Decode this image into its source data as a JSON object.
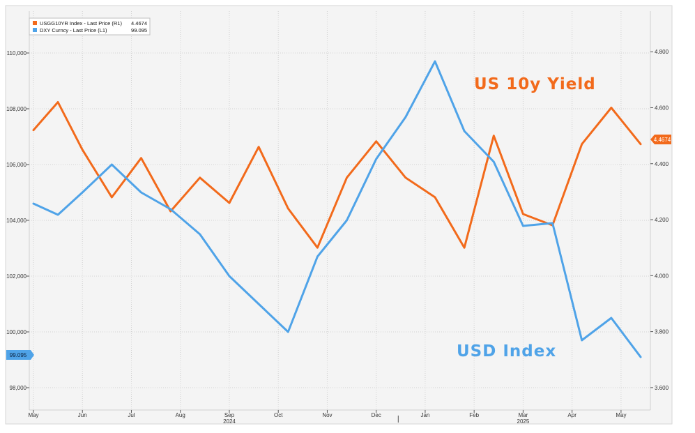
{
  "chart_data": {
    "type": "line",
    "months": [
      "May",
      "Jun",
      "Jul",
      "Aug",
      "Sep",
      "Oct",
      "Nov",
      "Dec",
      "Jan",
      "Feb",
      "Mar",
      "Apr",
      "May"
    ],
    "years": [
      "2024",
      "2025"
    ],
    "left_axis": {
      "ticks": [
        "98,000",
        "100,000",
        "102,000",
        "104,000",
        "106,000",
        "108,000",
        "110,000"
      ],
      "ylim": [
        97.2,
        111.5
      ]
    },
    "right_axis": {
      "ticks": [
        "3.600",
        "3.800",
        "4.000",
        "4.200",
        "4.400",
        "4.600",
        "4.800"
      ],
      "ylim": [
        3.52,
        4.945
      ]
    },
    "grid": true,
    "legend": {
      "position": "top-left",
      "items": [
        {
          "label": "USGG10YR Index - Last Price (R1)",
          "value": "4.4674",
          "color": "#f26a1b"
        },
        {
          "label": "DXY Curncy - Last Price (L1)",
          "value": "99.095",
          "color": "#4fa3e8"
        }
      ]
    },
    "annotations": {
      "yield_label": "US 10y Yield",
      "usd_label": "USD Index"
    },
    "last_value_tags": {
      "yield": "4.4674",
      "usd": "99.095"
    },
    "series": [
      {
        "name": "USGG10YR Index - Last Price (R1)",
        "axis": "right",
        "color": "#f26a1b",
        "x": [
          0,
          0.5,
          1,
          1.6,
          2.2,
          2.8,
          3.4,
          4,
          4.6,
          5.2,
          5.8,
          6.4,
          7,
          7.6,
          8.2,
          8.8,
          9.4,
          10,
          10.6,
          11.2,
          11.8,
          12.4
        ],
        "values": [
          4.52,
          4.62,
          4.45,
          4.28,
          4.42,
          4.23,
          4.35,
          4.26,
          4.46,
          4.24,
          4.1,
          4.35,
          4.48,
          4.35,
          4.28,
          4.1,
          4.5,
          4.22,
          4.18,
          4.47,
          4.6,
          4.47
        ]
      },
      {
        "name": "DXY Curncy - Last Price (L1)",
        "axis": "left",
        "color": "#4fa3e8",
        "x": [
          0,
          0.5,
          1,
          1.6,
          2.2,
          2.8,
          3.4,
          4,
          4.6,
          5.2,
          5.8,
          6.4,
          7,
          7.6,
          8.2,
          8.8,
          9.4,
          10,
          10.6,
          11.2,
          11.8,
          12.4
        ],
        "values": [
          104.6,
          104.2,
          105.0,
          106.0,
          105.0,
          104.4,
          103.5,
          102.0,
          101.0,
          100.0,
          102.7,
          104.0,
          106.2,
          107.7,
          109.7,
          107.2,
          106.1,
          103.8,
          103.9,
          99.7,
          100.5,
          99.1
        ]
      }
    ]
  }
}
